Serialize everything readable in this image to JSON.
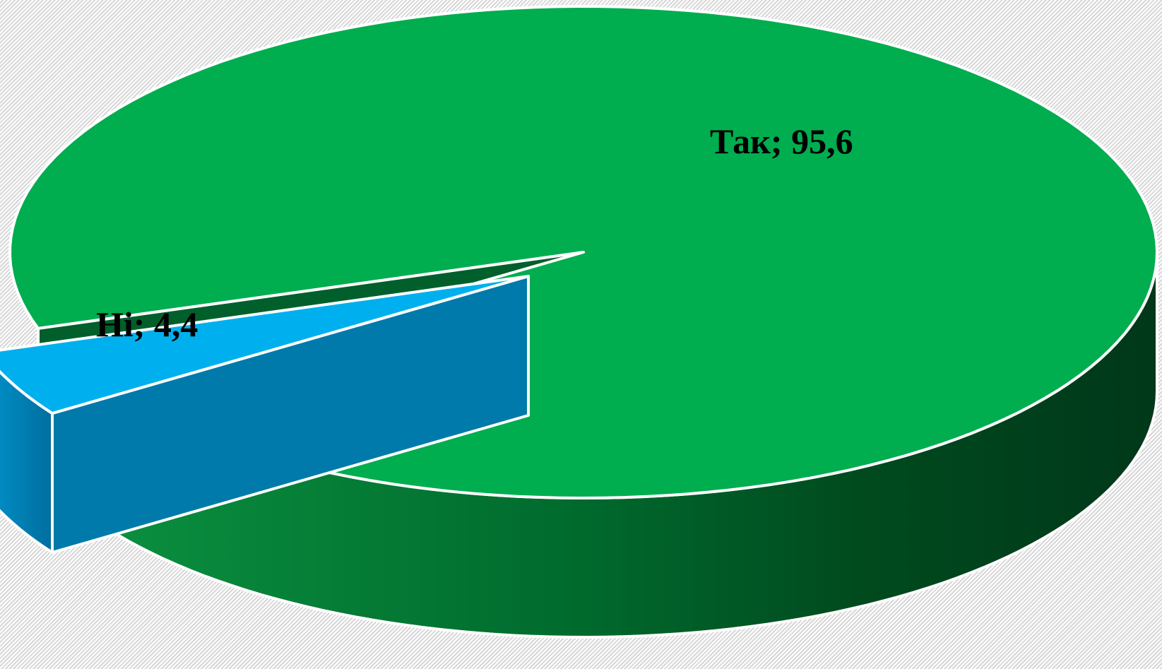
{
  "chart_data": {
    "type": "pie",
    "style": "3d-exploded",
    "title": "",
    "slices": [
      {
        "label": "Так",
        "value": 95.6,
        "display": "Так; 95,6",
        "color": "#00ad4f",
        "exploded": false
      },
      {
        "label": "Ні",
        "value": 4.4,
        "display": "Ні; 4,4",
        "color": "#00b0ee",
        "exploded": true
      }
    ],
    "legend": "none"
  }
}
